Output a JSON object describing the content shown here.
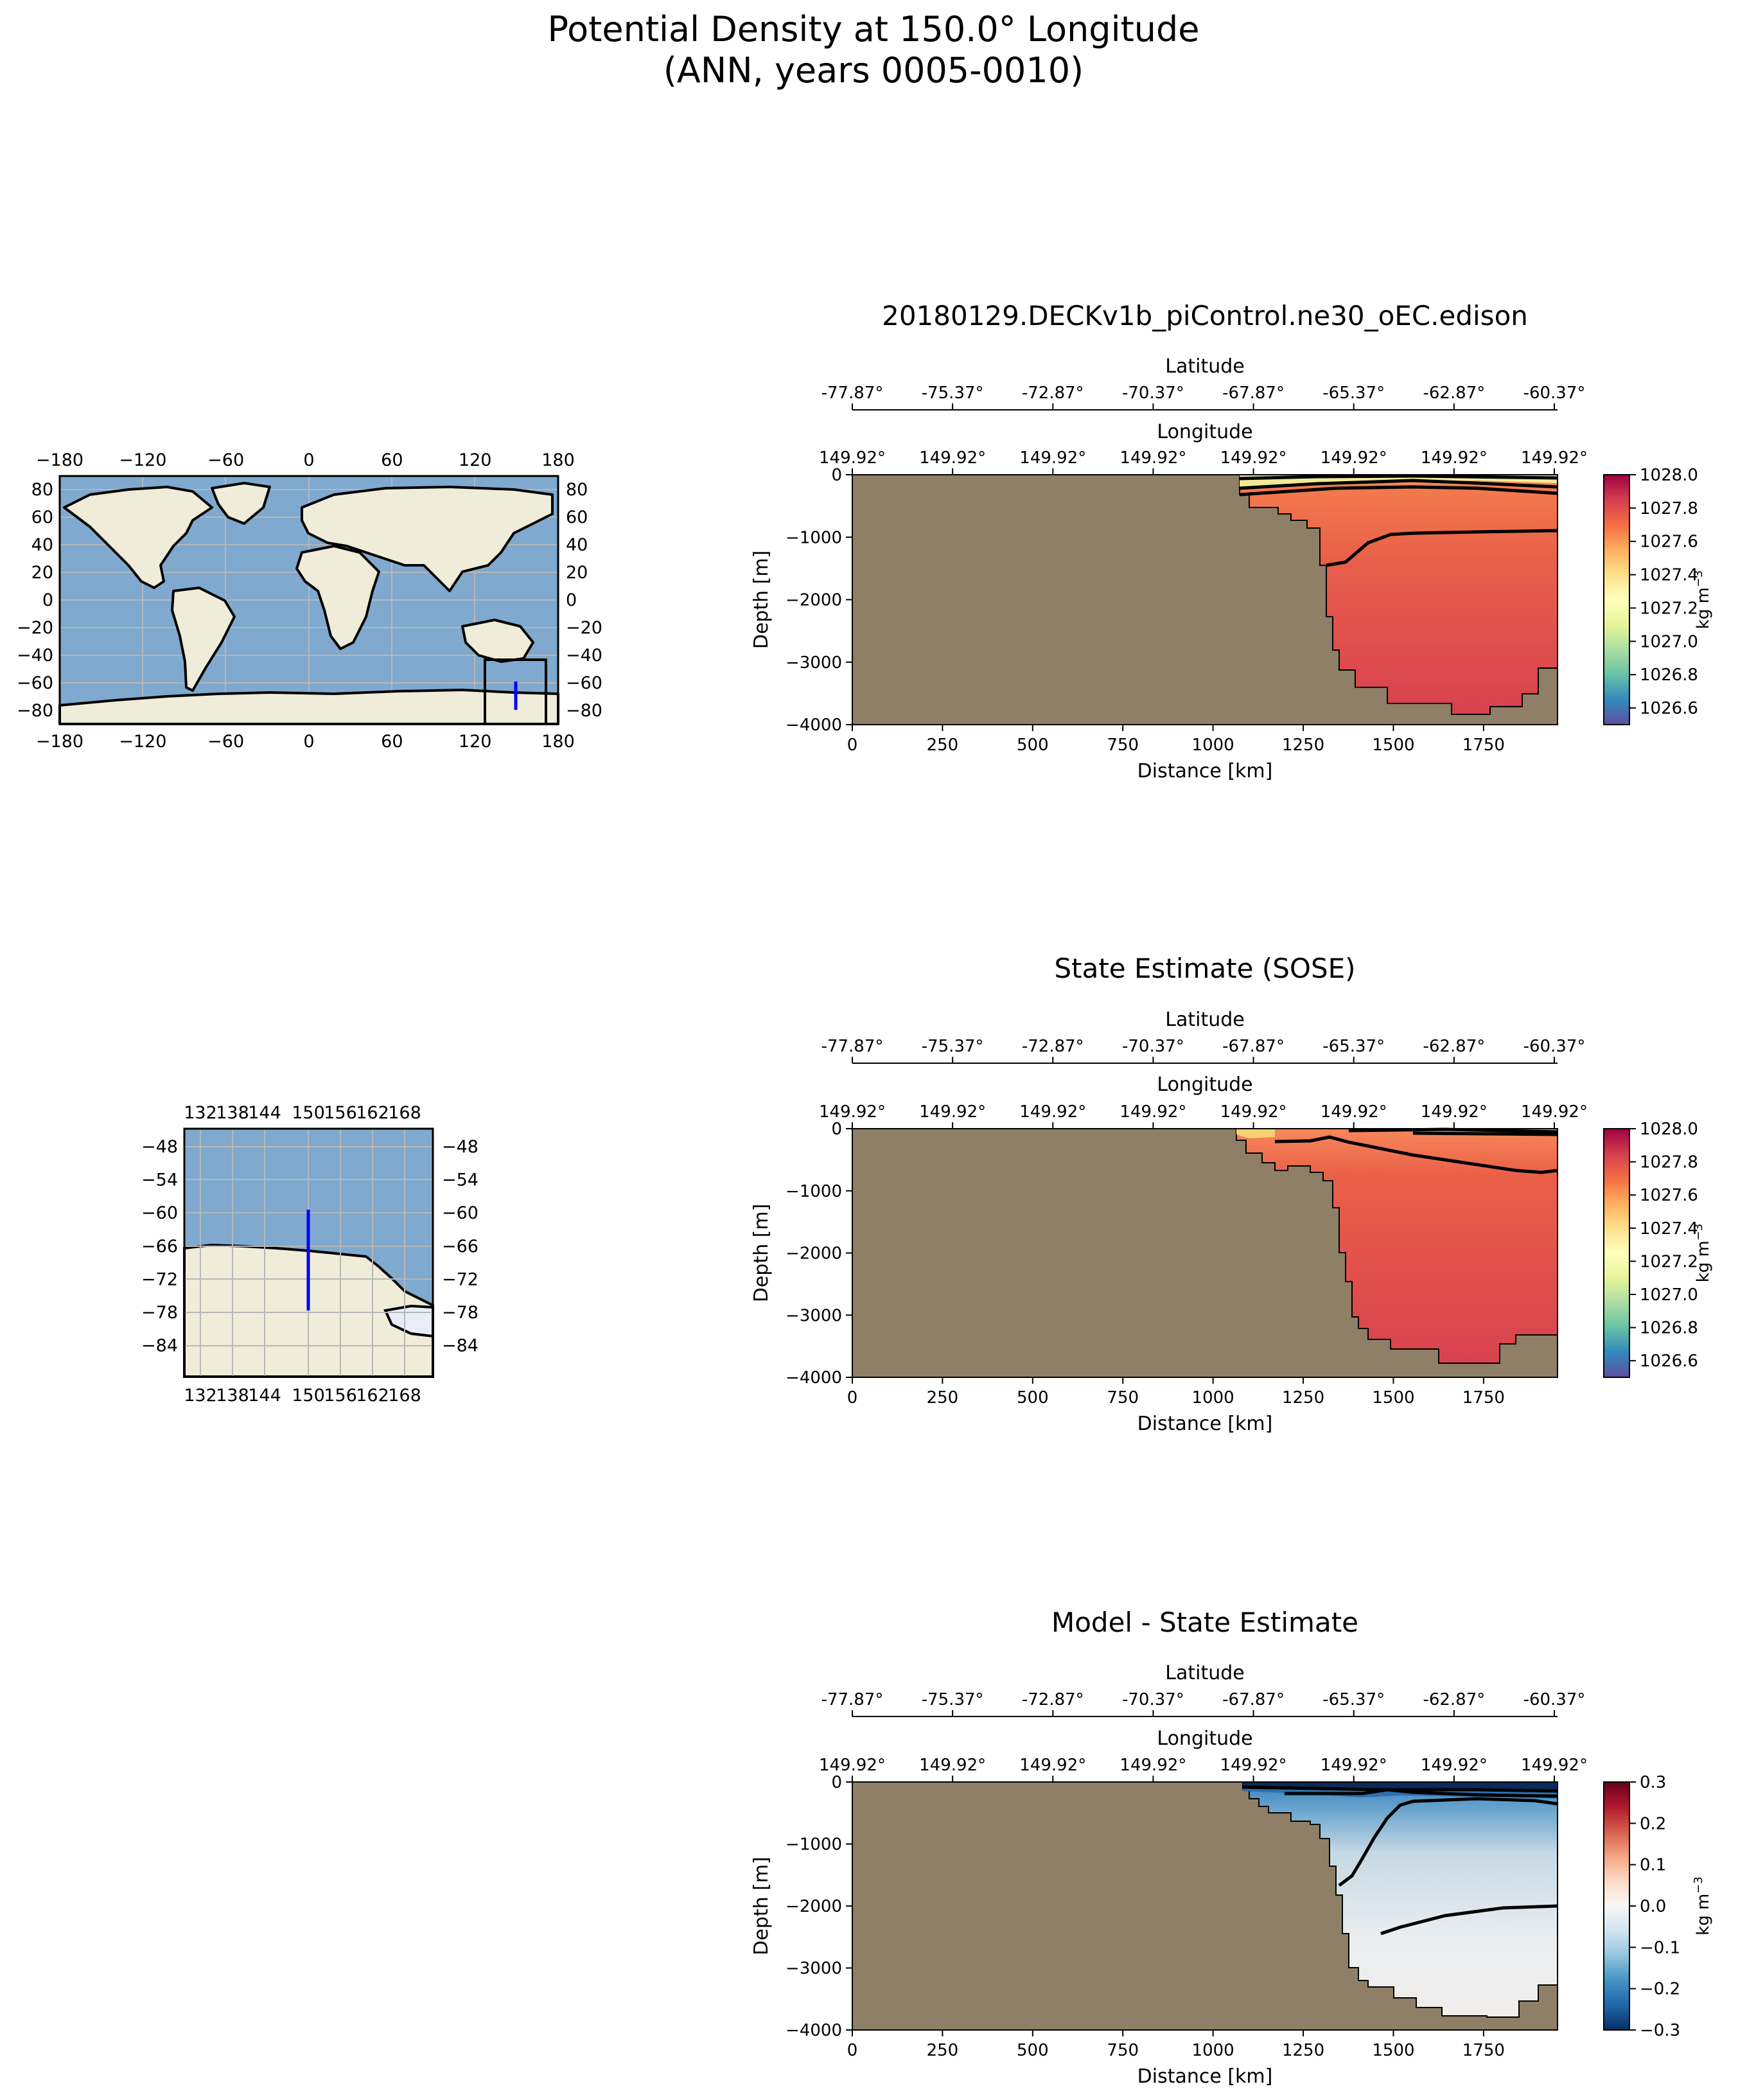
{
  "figure": {
    "title_line1": "Potential Density at 150.0° Longitude",
    "title_line2": "(ANN, years 0005-0010)"
  },
  "colors": {
    "land": "#8e7f66",
    "map_ocean": "#7fa9cf",
    "map_land": "#efecd9",
    "transect": "#0000ff",
    "contour": "#000000"
  },
  "world_map": {
    "x_ticks": [
      "−180",
      "−120",
      "−60",
      "0",
      "60",
      "120",
      "180"
    ],
    "y_ticks": [
      "80",
      "60",
      "40",
      "20",
      "0",
      "−20",
      "−40",
      "−60",
      "−80"
    ]
  },
  "inset_map": {
    "x_ticks": [
      "132",
      "138",
      "144",
      "150",
      "156",
      "162",
      "168"
    ],
    "y_ticks": [
      "−48",
      "−54",
      "−60",
      "−66",
      "−72",
      "−78",
      "−84"
    ]
  },
  "chart_data": [
    {
      "type": "heatmap",
      "title": "20180129.DECKv1b_piControl.ne30_oEC.edison",
      "xlabel": "Distance [km]",
      "ylabel": "Depth [m]",
      "lat_label": "Latitude",
      "lon_label": "Longitude",
      "lat_ticks": [
        "-77.87°",
        "-75.37°",
        "-72.87°",
        "-70.37°",
        "-67.87°",
        "-65.37°",
        "-62.87°",
        "-60.37°"
      ],
      "lon_ticks": [
        "149.92°",
        "149.92°",
        "149.92°",
        "149.92°",
        "149.92°",
        "149.92°",
        "149.92°",
        "149.92°"
      ],
      "x_ticks": [
        "0",
        "250",
        "500",
        "750",
        "1000",
        "1250",
        "1500",
        "1750"
      ],
      "y_ticks": [
        "0",
        "−1000",
        "−2000",
        "−3000",
        "−4000"
      ],
      "xlim": [
        0,
        1955
      ],
      "ylim": [
        -4000,
        0
      ],
      "colorbar": {
        "label": "kg m",
        "label_exp": "−3",
        "ticks": [
          "1028.0",
          "1027.8",
          "1027.6",
          "1027.4",
          "1027.2",
          "1027.0",
          "1026.8",
          "1026.6"
        ],
        "range": [
          1026.5,
          1028.0
        ],
        "colormap": "Spectral_r"
      }
    },
    {
      "type": "heatmap",
      "title": "State Estimate (SOSE)",
      "xlabel": "Distance [km]",
      "ylabel": "Depth [m]",
      "lat_label": "Latitude",
      "lon_label": "Longitude",
      "lat_ticks": [
        "-77.87°",
        "-75.37°",
        "-72.87°",
        "-70.37°",
        "-67.87°",
        "-65.37°",
        "-62.87°",
        "-60.37°"
      ],
      "lon_ticks": [
        "149.92°",
        "149.92°",
        "149.92°",
        "149.92°",
        "149.92°",
        "149.92°",
        "149.92°",
        "149.92°"
      ],
      "x_ticks": [
        "0",
        "250",
        "500",
        "750",
        "1000",
        "1250",
        "1500",
        "1750"
      ],
      "y_ticks": [
        "0",
        "−1000",
        "−2000",
        "−3000",
        "−4000"
      ],
      "xlim": [
        0,
        1955
      ],
      "ylim": [
        -4000,
        0
      ],
      "colorbar": {
        "label": "kg m",
        "label_exp": "−3",
        "ticks": [
          "1028.0",
          "1027.8",
          "1027.6",
          "1027.4",
          "1027.2",
          "1027.0",
          "1026.8",
          "1026.6"
        ],
        "range": [
          1026.5,
          1028.0
        ],
        "colormap": "Spectral_r"
      }
    },
    {
      "type": "heatmap",
      "title": "Model - State Estimate",
      "xlabel": "Distance [km]",
      "ylabel": "Depth [m]",
      "lat_label": "Latitude",
      "lon_label": "Longitude",
      "lat_ticks": [
        "-77.87°",
        "-75.37°",
        "-72.87°",
        "-70.37°",
        "-67.87°",
        "-65.37°",
        "-62.87°",
        "-60.37°"
      ],
      "lon_ticks": [
        "149.92°",
        "149.92°",
        "149.92°",
        "149.92°",
        "149.92°",
        "149.92°",
        "149.92°",
        "149.92°"
      ],
      "x_ticks": [
        "0",
        "250",
        "500",
        "750",
        "1000",
        "1250",
        "1500",
        "1750"
      ],
      "y_ticks": [
        "0",
        "−1000",
        "−2000",
        "−3000",
        "−4000"
      ],
      "xlim": [
        0,
        1955
      ],
      "ylim": [
        -4000,
        0
      ],
      "colorbar": {
        "label": "kg m",
        "label_exp": "−3",
        "ticks": [
          "0.3",
          "0.2",
          "0.1",
          "0.0",
          "−0.1",
          "−0.2",
          "−0.3"
        ],
        "range": [
          -0.3,
          0.3
        ],
        "colormap": "RdBu_r"
      }
    }
  ]
}
